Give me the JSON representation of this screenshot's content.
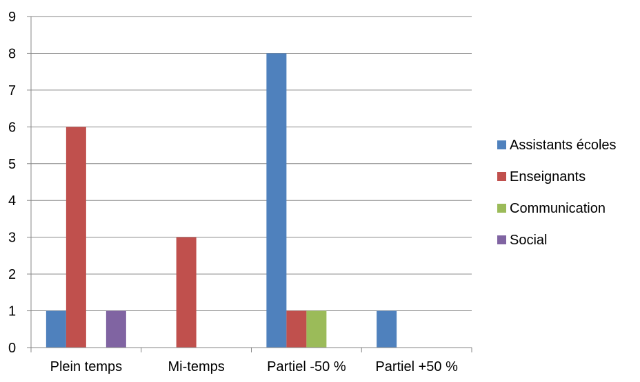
{
  "chart_data": {
    "type": "bar",
    "title": "",
    "xlabel": "",
    "ylabel": "",
    "categories": [
      "Plein temps",
      "Mi-temps",
      "Partiel -50 %",
      "Partiel +50 %"
    ],
    "series": [
      {
        "name": "Assistants écoles",
        "color": "#4F81BD",
        "values": [
          1,
          0,
          8,
          1
        ]
      },
      {
        "name": "Enseignants",
        "color": "#C0504D",
        "values": [
          6,
          3,
          1,
          0
        ]
      },
      {
        "name": "Communication",
        "color": "#9BBB59",
        "values": [
          0,
          0,
          1,
          0
        ]
      },
      {
        "name": "Social",
        "color": "#8064A2",
        "values": [
          1,
          0,
          0,
          0
        ]
      }
    ],
    "ylim": [
      0,
      9
    ],
    "yticks": [
      "0",
      "1",
      "2",
      "3",
      "4",
      "5",
      "6",
      "7",
      "8",
      "9"
    ],
    "grid": true,
    "legend_position": "right",
    "gridline_color": "#868686",
    "axis_color": "#868686"
  }
}
